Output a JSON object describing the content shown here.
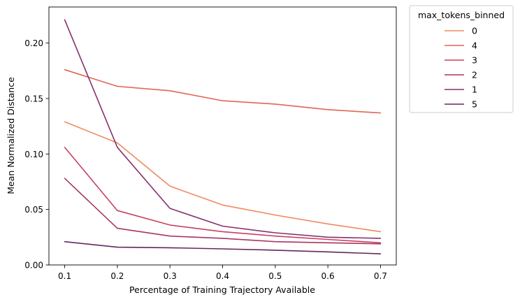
{
  "chart_data": {
    "type": "line",
    "xlabel": "Percentage of Training Trajectory Available",
    "ylabel": "Mean Normalized Distance",
    "x": [
      0.1,
      0.2,
      0.3,
      0.4,
      0.5,
      0.6,
      0.7
    ],
    "xlim": [
      0.07,
      0.73
    ],
    "ylim": [
      0.0,
      0.2325
    ],
    "xticks": [
      "0.1",
      "0.2",
      "0.3",
      "0.4",
      "0.5",
      "0.6",
      "0.7"
    ],
    "yticks": [
      "0.00",
      "0.05",
      "0.10",
      "0.15",
      "0.20"
    ],
    "grid": false,
    "legend": {
      "title": "max_tokens_binned",
      "placement": "outside-top-right"
    },
    "series": [
      {
        "name": "0",
        "color": "#ee8a5f",
        "values": [
          0.129,
          0.11,
          0.071,
          0.054,
          0.045,
          0.037,
          0.03
        ]
      },
      {
        "name": "4",
        "color": "#e16554",
        "values": [
          0.176,
          0.161,
          0.157,
          0.148,
          0.145,
          0.14,
          0.137
        ]
      },
      {
        "name": "3",
        "color": "#c94060",
        "values": [
          0.106,
          0.049,
          0.036,
          0.03,
          0.026,
          0.023,
          0.02
        ]
      },
      {
        "name": "2",
        "color": "#a93564",
        "values": [
          0.078,
          0.033,
          0.026,
          0.024,
          0.021,
          0.02,
          0.019
        ]
      },
      {
        "name": "1",
        "color": "#86306b",
        "values": [
          0.221,
          0.106,
          0.051,
          0.035,
          0.029,
          0.025,
          0.024
        ]
      },
      {
        "name": "5",
        "color": "#63285e",
        "values": [
          0.021,
          0.016,
          0.0155,
          0.0145,
          0.0133,
          0.0118,
          0.01
        ]
      }
    ]
  }
}
